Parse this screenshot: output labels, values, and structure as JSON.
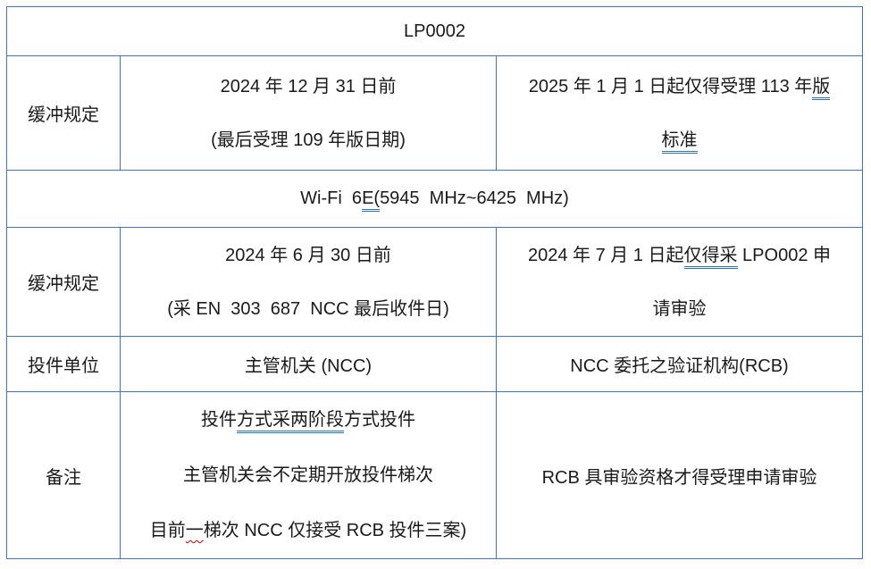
{
  "colors": {
    "table_border": "#4472C4",
    "grammar_mark": "#2E75B6",
    "spelling_mark": "#C00000",
    "text": "#1A1A1A"
  },
  "table": {
    "title": "LP0002",
    "buffer_109": {
      "label": "缓冲规定",
      "deadline_line1": "2024 年 12 月 31 日前",
      "deadline_line2": "(最后受理 109 年版日期)",
      "after_line1_plain": "2025 年 1 月 1 日起仅得受理 113 年",
      "after_line1_marked": "版",
      "after_line2_marked": "标准"
    },
    "wifi_6e": {
      "prefix": "Wi-Fi  6",
      "marked": "E(",
      "suffix": "5945  MHz~6425  MHz)"
    },
    "buffer_wifi": {
      "label": "缓冲规定",
      "deadline_line1": "2024 年 6 月 30 日前",
      "deadline_line2": "(采 EN  303  687  NCC 最后收件日)",
      "after_line1_plain": "2024 年 7 月 1 日起",
      "after_line1_marked": "仅得采",
      "after_line1_tail": " LPO002 申",
      "after_line2": "请审验"
    },
    "submission_unit": {
      "label": "投件单位",
      "left": "主管机关 (NCC)",
      "right": "NCC 委托之验证机构(RCB)"
    },
    "remarks": {
      "label": "备注",
      "line1_head": "投件",
      "line1_marked": "方式采两阶段",
      "line1_tail": "方式投件",
      "line2": "主管机关会不定期开放投件梯次",
      "line3_head": "目前",
      "line3_marked": "一",
      "line3_tail": "梯次 NCC 仅接受 RCB 投件三案)",
      "right": "RCB 具审验资格才得受理申请审验"
    }
  }
}
